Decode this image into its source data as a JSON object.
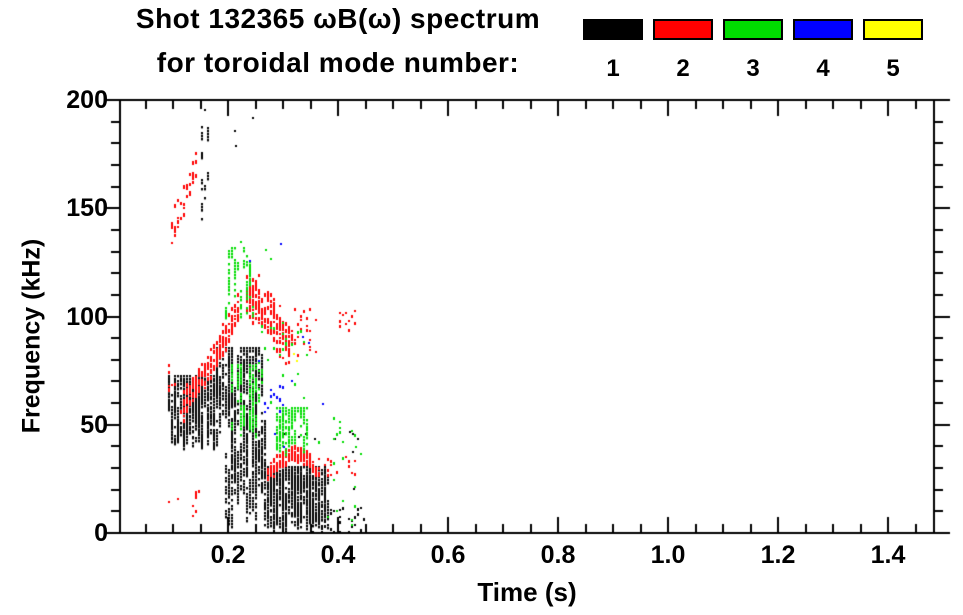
{
  "title": {
    "line1": "Shot 132365 ωB(ω) spectrum",
    "line2": "for toroidal mode number:"
  },
  "legend": {
    "modes": [
      {
        "label": "1",
        "color": "#000000"
      },
      {
        "label": "2",
        "color": "#ff0000"
      },
      {
        "label": "3",
        "color": "#00dd00"
      },
      {
        "label": "4",
        "color": "#0000ff"
      },
      {
        "label": "5",
        "color": "#ffff00"
      }
    ]
  },
  "chart_data": {
    "type": "scatter",
    "title": "Shot 132365 ωB(ω) spectrum for toroidal mode number: 1–5",
    "xlabel": "Time (s)",
    "ylabel": "Frequency (kHz)",
    "xlim": [
      0,
      1.484
    ],
    "ylim": [
      0,
      200
    ],
    "x_major_ticks": [
      0.2,
      0.4,
      0.6,
      0.8,
      1.0,
      1.2,
      1.4
    ],
    "x_tick_labels": [
      "0.2",
      "0.4",
      "0.6",
      "0.8",
      "1.0",
      "1.2",
      "1.4"
    ],
    "x_minor_step": 0.05,
    "y_major_ticks": [
      0,
      50,
      100,
      150,
      200
    ],
    "y_tick_labels": [
      "0",
      "50",
      "100",
      "150",
      "200"
    ],
    "y_minor_step": 10,
    "grid": false,
    "legend_position": "top-right",
    "series": [
      {
        "name": "toroidal mode n=1",
        "color": "#000000",
        "clusters": [
          {
            "type": "vstreaks",
            "t": [
              0.088,
              0.178
            ],
            "f": [
              38,
              73
            ],
            "n": 150,
            "len": [
              2,
              16
            ]
          },
          {
            "type": "vstreaks",
            "t": [
              0.175,
              0.262
            ],
            "f": [
              46,
              86
            ],
            "n": 120,
            "len": [
              2,
              18
            ]
          },
          {
            "type": "vstreaks",
            "t": [
              0.19,
              0.272
            ],
            "f": [
              1,
              52
            ],
            "n": 40,
            "len": [
              5,
              35
            ]
          },
          {
            "type": "vstreaks",
            "t": [
              0.266,
              0.378
            ],
            "f": [
              0,
              31
            ],
            "n": 220,
            "len": [
              2,
              14
            ]
          },
          {
            "type": "scatter",
            "t": [
              0.37,
              0.445
            ],
            "f": [
              0,
              13
            ],
            "n": 35
          },
          {
            "type": "vstreaks",
            "t": [
              0.148,
              0.163
            ],
            "f": [
              142,
              190
            ],
            "n": 9,
            "len": [
              2,
              7
            ]
          },
          {
            "type": "points",
            "pts": [
              [
                0.244,
                192
              ],
              [
                0.21,
                186
              ],
              [
                0.212,
                179
              ],
              [
                0.157,
                196
              ],
              [
                0.34,
                46
              ],
              [
                0.357,
                44
              ],
              [
                0.42,
                47
              ],
              [
                0.425,
                46
              ],
              [
                0.425,
                38
              ],
              [
                0.427,
                21
              ],
              [
                0.434,
                44
              ],
              [
                0.302,
                46
              ],
              [
                0.327,
                45
              ],
              [
                0.392,
                44
              ]
            ]
          }
        ]
      },
      {
        "name": "toroidal mode n=2",
        "color": "#ff0000",
        "clusters": [
          {
            "type": "band",
            "path": [
              [
                0.095,
                140
              ],
              [
                0.118,
                153
              ],
              [
                0.14,
                171
              ]
            ],
            "hw": 10,
            "n": 40
          },
          {
            "type": "band",
            "path": [
              [
                0.115,
                60
              ],
              [
                0.145,
                70
              ],
              [
                0.175,
                82
              ],
              [
                0.2,
                95
              ],
              [
                0.222,
                108
              ]
            ],
            "hw": 8,
            "n": 240
          },
          {
            "type": "band",
            "path": [
              [
                0.232,
                112
              ],
              [
                0.258,
                106
              ],
              [
                0.28,
                99
              ],
              [
                0.3,
                91
              ],
              [
                0.312,
                87
              ]
            ],
            "hw": 13,
            "n": 240
          },
          {
            "type": "scatter",
            "t": [
              0.312,
              0.36
            ],
            "f": [
              82,
              104
            ],
            "n": 25
          },
          {
            "type": "band",
            "path": [
              [
                0.268,
                27
              ],
              [
                0.292,
                34
              ],
              [
                0.315,
                38
              ],
              [
                0.338,
                36
              ],
              [
                0.358,
                30
              ]
            ],
            "hw": 4.5,
            "n": 170
          },
          {
            "type": "scatter",
            "t": [
              0.358,
              0.428
            ],
            "f": [
              27,
              36
            ],
            "n": 20
          },
          {
            "type": "scatter",
            "t": [
              0.398,
              0.437
            ],
            "f": [
              94,
              104
            ],
            "n": 12
          },
          {
            "type": "scatter",
            "t": [
              0.085,
              0.155
            ],
            "f": [
              8,
              22
            ],
            "n": 10
          },
          {
            "type": "scatter",
            "t": [
              0.088,
              0.105
            ],
            "f": [
              65,
              80
            ],
            "n": 8
          }
        ]
      },
      {
        "name": "toroidal mode n=3",
        "color": "#00dd00",
        "clusters": [
          {
            "type": "vstreaks",
            "t": [
              0.188,
              0.245
            ],
            "f": [
              98,
              132
            ],
            "n": 30,
            "len": [
              2,
              9
            ]
          },
          {
            "type": "vstreaks",
            "t": [
              0.2,
              0.262
            ],
            "f": [
              42,
              78
            ],
            "n": 35,
            "len": [
              3,
              12
            ]
          },
          {
            "type": "vstreaks",
            "t": [
              0.285,
              0.352
            ],
            "f": [
              36,
              58
            ],
            "n": 55,
            "len": [
              2,
              9
            ]
          },
          {
            "type": "scatter",
            "t": [
              0.25,
              0.345
            ],
            "f": [
              60,
              100
            ],
            "n": 30
          },
          {
            "type": "scatter",
            "t": [
              0.36,
              0.44
            ],
            "f": [
              2,
              55
            ],
            "n": 20
          },
          {
            "type": "points",
            "pts": [
              [
                0.267,
                131
              ],
              [
                0.277,
                127
              ],
              [
                0.222,
                135
              ],
              [
                0.43,
                40
              ],
              [
                0.44,
                37
              ]
            ]
          }
        ]
      },
      {
        "name": "toroidal mode n=4",
        "color": "#0000ff",
        "clusters": [
          {
            "type": "scatter",
            "t": [
              0.258,
              0.322
            ],
            "f": [
              56,
              74
            ],
            "n": 16
          },
          {
            "type": "points",
            "pts": [
              [
                0.238,
                126
              ],
              [
                0.295,
                134
              ],
              [
                0.255,
                80
              ],
              [
                0.3,
                40
              ],
              [
                0.335,
                91
              ],
              [
                0.345,
                88
              ],
              [
                0.283,
                46
              ],
              [
                0.37,
                60
              ]
            ]
          }
        ]
      },
      {
        "name": "toroidal mode n=5",
        "color": "#ffff00",
        "clusters": [
          {
            "type": "points",
            "pts": [
              [
                0.318,
                83
              ],
              [
                0.324,
                80
              ]
            ]
          }
        ]
      }
    ]
  }
}
